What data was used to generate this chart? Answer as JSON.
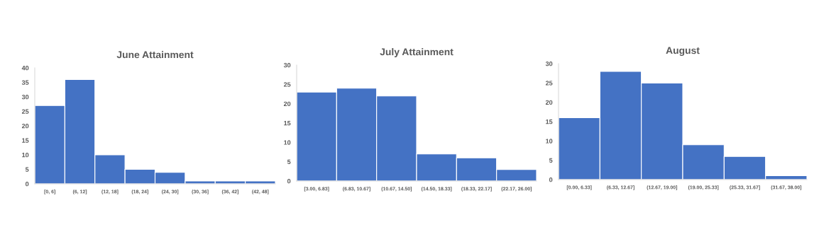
{
  "chart_data": [
    {
      "type": "bar",
      "title": "June Attainment",
      "categories": [
        "[0, 6]",
        "(6, 12]",
        "(12, 18]",
        "(18, 24]",
        "(24, 30]",
        "(30, 36]",
        "(36, 42]",
        "(42, 48]"
      ],
      "values": [
        27,
        36,
        10,
        5,
        4,
        1,
        1,
        1
      ],
      "color": "#4472c4",
      "ylim": [
        0,
        40
      ],
      "yticks": [
        0,
        5,
        10,
        15,
        20,
        25,
        30,
        35,
        40
      ],
      "grid": false,
      "legend": false
    },
    {
      "type": "bar",
      "title": "July Attainment",
      "categories": [
        "[3.00, 6.83]",
        "(6.83, 10.67]",
        "(10.67, 14.50]",
        "(14.50, 18.33]",
        "(18.33, 22.17]",
        "(22.17, 26.00]"
      ],
      "values": [
        23,
        24,
        22,
        7,
        6,
        3
      ],
      "color": "#4472c4",
      "ylim": [
        0,
        30
      ],
      "yticks": [
        0,
        5,
        10,
        15,
        20,
        25,
        30
      ],
      "grid": false,
      "legend": false
    },
    {
      "type": "bar",
      "title": "August",
      "categories": [
        "[0.00, 6.33]",
        "(6.33, 12.67]",
        "(12.67, 19.00]",
        "(19.00, 25.33]",
        "(25.33, 31.67]",
        "(31.67, 38.00]"
      ],
      "values": [
        16,
        28,
        25,
        9,
        6,
        1
      ],
      "color": "#4472c4",
      "ylim": [
        0,
        30
      ],
      "yticks": [
        0,
        5,
        10,
        15,
        20,
        25,
        30
      ],
      "grid": false,
      "legend": false
    }
  ]
}
